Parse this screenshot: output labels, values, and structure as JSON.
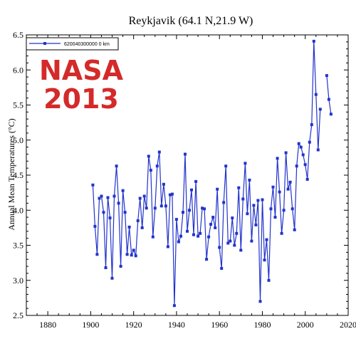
{
  "overlay": {
    "line1": "NASA",
    "line2": "2013",
    "color": "#d42a2a"
  },
  "chart_data": {
    "type": "line",
    "title": "Reykjavik (64.1 N,21.9 W)",
    "xlabel": "",
    "ylabel": "Annual Mean Temperatures (°C)",
    "xlim": [
      1870,
      2020
    ],
    "ylim": [
      2.5,
      6.5
    ],
    "xticks": [
      1880,
      1900,
      1920,
      1940,
      1960,
      1980,
      2000,
      2020
    ],
    "yticks": [
      2.5,
      3.0,
      3.5,
      4.0,
      4.5,
      5.0,
      5.5,
      6.0,
      6.5
    ],
    "ytick_labels": [
      "2.5",
      "3.0",
      "3.5",
      "4.0",
      "4.5",
      "5.0",
      "5.5",
      "6.0",
      "6.5"
    ],
    "legend": {
      "position": "top-left",
      "entries": [
        "620040300000 0 km"
      ]
    },
    "series_color": "#2233cc",
    "segments": [
      {
        "x": [
          1901,
          1902,
          1903,
          1904,
          1905,
          1906,
          1907,
          1908,
          1909,
          1910,
          1911,
          1912,
          1913,
          1914,
          1915,
          1916,
          1917,
          1918,
          1919,
          1920,
          1921,
          1922,
          1923,
          1924,
          1925,
          1926,
          1927,
          1928,
          1929,
          1930,
          1931,
          1932,
          1933,
          1934,
          1935,
          1936,
          1937,
          1938,
          1939,
          1940,
          1941,
          1942,
          1943,
          1944,
          1945,
          1946,
          1947,
          1948,
          1949,
          1950,
          1951,
          1952,
          1953,
          1954,
          1955,
          1956,
          1957,
          1958,
          1959,
          1960,
          1961,
          1962,
          1963,
          1964,
          1965,
          1966,
          1967,
          1968,
          1969,
          1970,
          1971,
          1972,
          1973,
          1974,
          1975,
          1976,
          1977,
          1978,
          1979,
          1980,
          1981,
          1982,
          1983,
          1984,
          1985,
          1986,
          1987,
          1988,
          1989,
          1990,
          1991,
          1992,
          1993,
          1994,
          1995,
          1996,
          1997,
          1998,
          1999,
          2000,
          2001,
          2002,
          2003,
          2004,
          2005,
          2006
        ],
        "y": [
          4.36,
          3.77,
          3.37,
          4.17,
          4.2,
          3.97,
          3.18,
          4.18,
          3.89,
          3.03,
          4.2,
          4.63,
          4.1,
          3.2,
          4.28,
          3.97,
          3.37,
          3.76,
          3.36,
          3.43,
          3.35,
          3.85,
          4.17,
          3.75,
          4.2,
          4.03,
          4.77,
          4.57,
          3.62,
          4.03,
          4.63,
          4.83,
          4.06,
          4.37,
          4.06,
          3.48,
          4.22,
          4.23,
          2.64,
          3.87,
          3.55,
          3.63,
          3.97,
          4.8,
          3.7,
          4.0,
          4.29,
          3.65,
          4.41,
          3.63,
          3.67,
          4.03,
          4.02,
          3.3,
          3.62,
          3.8,
          3.9,
          3.75,
          4.3,
          3.47,
          3.17,
          4.11,
          4.63,
          3.53,
          3.56,
          3.89,
          3.5,
          3.67,
          4.32,
          3.43,
          4.16,
          4.67,
          3.95,
          4.43,
          3.56,
          4.07,
          3.79,
          4.14,
          2.7,
          4.15,
          3.29,
          3.58,
          3.0,
          4.02,
          4.33,
          3.9,
          4.74,
          4.26,
          3.67,
          4.0,
          4.82,
          4.3,
          4.4,
          4.02,
          3.72,
          4.63,
          4.95,
          4.9,
          4.79,
          4.65,
          4.44,
          4.97,
          5.22,
          6.41,
          5.65,
          4.86
        ]
      },
      {
        "x": [
          2006,
          2007
        ],
        "y": [
          4.86,
          5.44
        ]
      },
      {
        "x": [
          2010,
          2011,
          2012
        ],
        "y": [
          5.92,
          5.58,
          5.37
        ]
      }
    ]
  }
}
